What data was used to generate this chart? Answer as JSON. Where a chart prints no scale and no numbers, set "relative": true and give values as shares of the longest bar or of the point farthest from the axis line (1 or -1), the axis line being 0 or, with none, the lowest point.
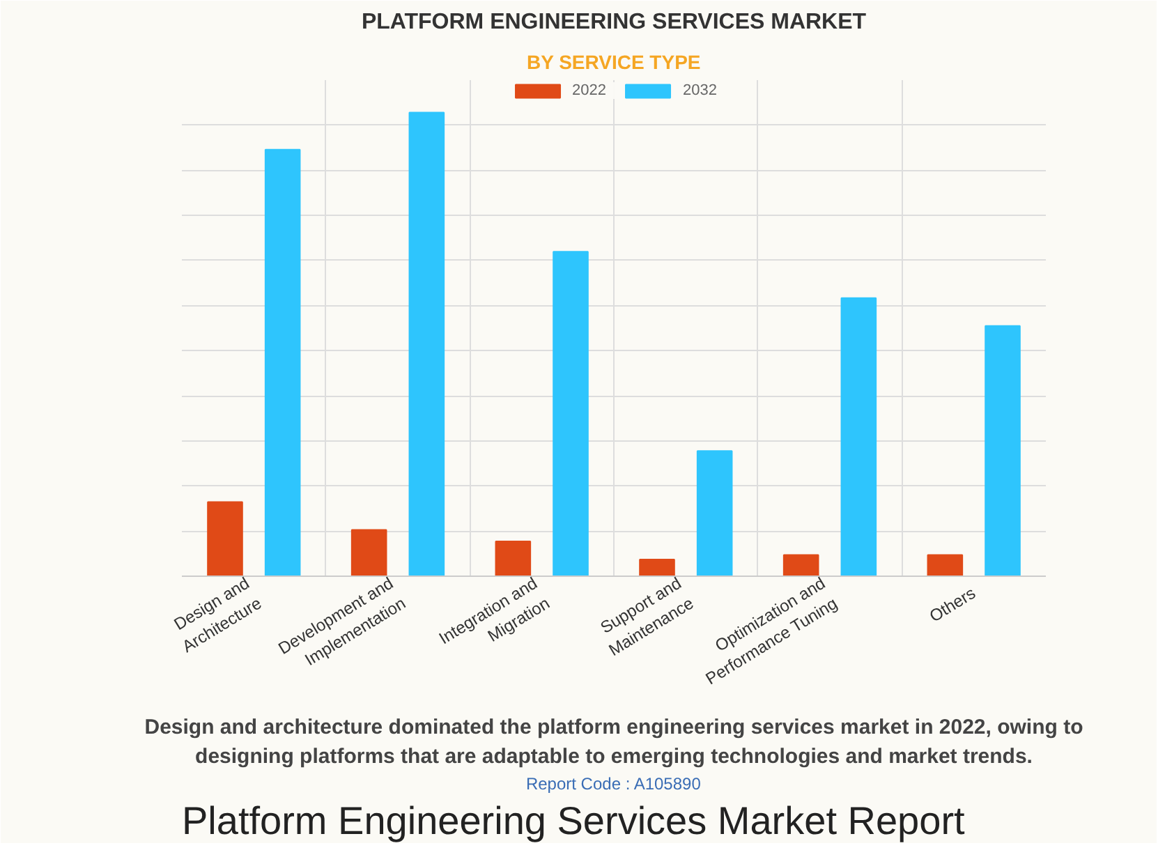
{
  "chart_data": {
    "type": "bar",
    "title": "PLATFORM ENGINEERING SERVICES MARKET",
    "subtitle": "BY SERVICE TYPE",
    "categories": [
      "Design and Architecture",
      "Development and Implementation",
      "Integration and Migration",
      "Support and Maintenance",
      "Optimization and Performance Tuning",
      "Others"
    ],
    "series": [
      {
        "name": "2022",
        "color": "#e04a17",
        "values": [
          0.16,
          0.1,
          0.075,
          0.036,
          0.046,
          0.046
        ]
      },
      {
        "name": "2032",
        "color": "#2ec5fd",
        "values": [
          0.92,
          1,
          0.7,
          0.27,
          0.6,
          0.54
        ]
      }
    ],
    "relative": true,
    "grid": true,
    "legend": "top",
    "annotations": [
      "Design and architecture dominated the platform engineering services market in 2022, owing to designing platforms that are adaptable to emerging technologies and market trends.",
      "Report Code : A105890",
      "Platform Engineering Services Market Report"
    ]
  }
}
